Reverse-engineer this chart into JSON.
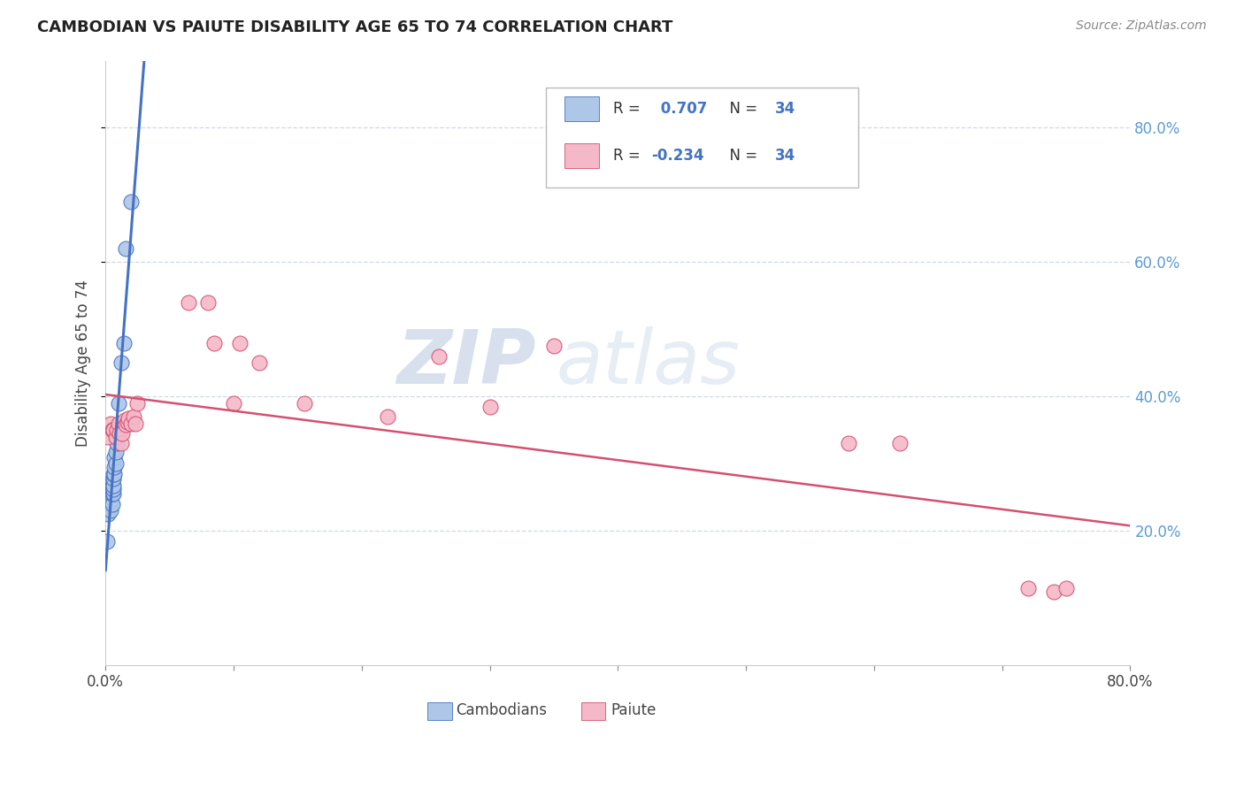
{
  "title": "CAMBODIAN VS PAIUTE DISABILITY AGE 65 TO 74 CORRELATION CHART",
  "source": "Source: ZipAtlas.com",
  "ylabel": "Disability Age 65 to 74",
  "xlim": [
    0.0,
    0.8
  ],
  "ylim": [
    0.0,
    0.9
  ],
  "x_ticks": [
    0.0,
    0.1,
    0.2,
    0.3,
    0.4,
    0.5,
    0.6,
    0.7,
    0.8
  ],
  "x_tick_labels": [
    "0.0%",
    "",
    "",
    "",
    "",
    "",
    "",
    "",
    "80.0%"
  ],
  "y_ticks_right": [
    0.2,
    0.4,
    0.6,
    0.8
  ],
  "y_tick_labels_right": [
    "20.0%",
    "40.0%",
    "60.0%",
    "80.0%"
  ],
  "cambodian_R": 0.707,
  "cambodian_N": 34,
  "paiute_R": -0.234,
  "paiute_N": 34,
  "cambodian_color": "#aec6e8",
  "cambodian_edge_color": "#4472c4",
  "paiute_color": "#f4b8c8",
  "paiute_edge_color": "#d45070",
  "blue_line_color": "#4472c4",
  "pink_line_color": "#d45070",
  "background_color": "#ffffff",
  "grid_color": "#d0d8ee",
  "watermark_color": "#d0dff0",
  "cambodian_x": [
    0.001,
    0.002,
    0.002,
    0.003,
    0.003,
    0.003,
    0.003,
    0.004,
    0.004,
    0.004,
    0.004,
    0.005,
    0.005,
    0.005,
    0.005,
    0.005,
    0.005,
    0.006,
    0.006,
    0.006,
    0.006,
    0.006,
    0.007,
    0.007,
    0.007,
    0.008,
    0.008,
    0.009,
    0.01,
    0.01,
    0.012,
    0.014,
    0.016,
    0.02
  ],
  "cambodian_y": [
    0.185,
    0.225,
    0.24,
    0.24,
    0.25,
    0.255,
    0.26,
    0.23,
    0.245,
    0.255,
    0.26,
    0.24,
    0.255,
    0.258,
    0.262,
    0.268,
    0.275,
    0.255,
    0.262,
    0.268,
    0.278,
    0.285,
    0.285,
    0.295,
    0.31,
    0.3,
    0.318,
    0.33,
    0.35,
    0.39,
    0.45,
    0.48,
    0.62,
    0.69
  ],
  "paiute_x": [
    0.002,
    0.004,
    0.005,
    0.006,
    0.008,
    0.009,
    0.01,
    0.011,
    0.012,
    0.013,
    0.015,
    0.016,
    0.017,
    0.018,
    0.02,
    0.022,
    0.023,
    0.025,
    0.065,
    0.08,
    0.085,
    0.1,
    0.105,
    0.12,
    0.155,
    0.22,
    0.26,
    0.3,
    0.35,
    0.58,
    0.62,
    0.72,
    0.74,
    0.75
  ],
  "paiute_y": [
    0.34,
    0.36,
    0.35,
    0.35,
    0.34,
    0.35,
    0.36,
    0.345,
    0.33,
    0.345,
    0.365,
    0.358,
    0.362,
    0.368,
    0.36,
    0.37,
    0.36,
    0.39,
    0.54,
    0.54,
    0.48,
    0.39,
    0.48,
    0.45,
    0.39,
    0.37,
    0.46,
    0.385,
    0.475,
    0.33,
    0.33,
    0.115,
    0.11,
    0.115
  ]
}
